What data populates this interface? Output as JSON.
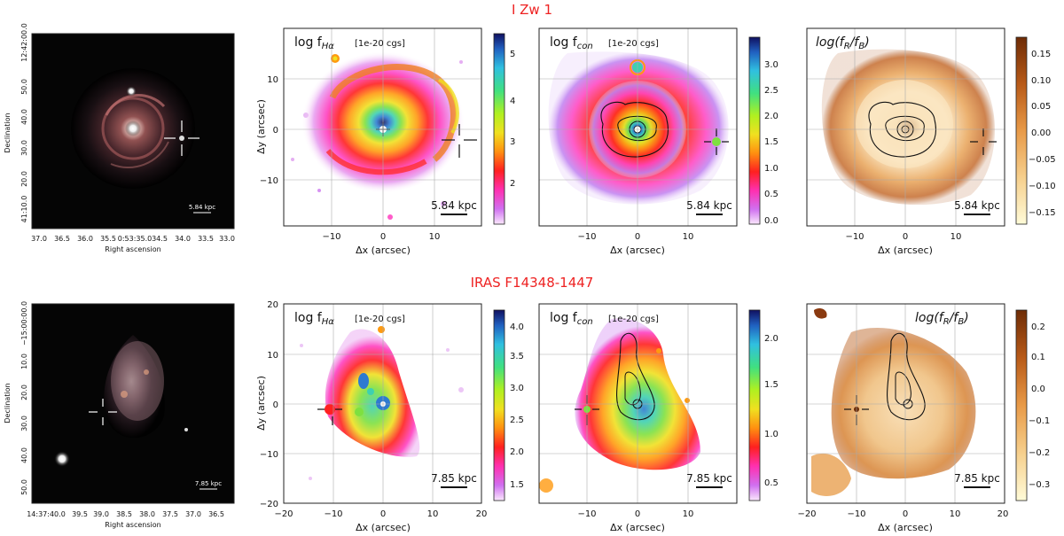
{
  "figure": {
    "rows": [
      {
        "id": "row1",
        "object_name": "I Zw 1",
        "optical": {
          "ylabel": "Declination",
          "xlabel": "Right ascension",
          "dec_ticks": [
            "12:42:00.0",
            "50.0",
            "40.0",
            "30.0",
            "20.0",
            "41:10.0"
          ],
          "ra_ticks": [
            "37.0",
            "36.5",
            "36.0",
            "35.5",
            "0:53:35.0",
            "34.5",
            "34.0",
            "33.5",
            "33.0"
          ],
          "scalebar": "5.84 kpc"
        },
        "panels": [
          {
            "name": "halpha",
            "label_main": "log f",
            "label_sub": "Hα",
            "units": "[1e-20 cgs]",
            "scalebar": "5.84 kpc",
            "xticks": [
              "−10",
              "0",
              "10"
            ],
            "yticks": [
              "10",
              "0",
              "−10"
            ],
            "xlabel": "Δx (arcsec)",
            "ylabel": "Δy (arcsec)",
            "colorbar_ticks": [
              "5",
              "4",
              "3",
              "2"
            ]
          },
          {
            "name": "continuum",
            "label_main": "log f",
            "label_sub": "con",
            "units": "[1e-20 cgs]",
            "scalebar": "5.84 kpc",
            "xticks": [
              "−10",
              "0",
              "10"
            ],
            "xlabel": "Δx (arcsec)",
            "colorbar_ticks": [
              "3.0",
              "2.5",
              "2.0",
              "1.5",
              "1.0",
              "0.5",
              "0.0"
            ]
          },
          {
            "name": "color",
            "label_text": "log(f",
            "label_r": "R",
            "label_mid": "/f",
            "label_b": "B",
            "label_end": ")",
            "scalebar": "5.84 kpc",
            "xticks": [
              "−10",
              "0",
              "10"
            ],
            "xlabel": "Δx (arcsec)",
            "colorbar_ticks": [
              "0.15",
              "0.10",
              "0.05",
              "0.00",
              "−0.05",
              "−0.10",
              "−0.15"
            ]
          }
        ]
      },
      {
        "id": "row2",
        "object_name": "IRAS F14348-1447",
        "optical": {
          "ylabel": "Declination",
          "xlabel": "Right ascension",
          "dec_ticks": [
            "−15:00:00.0",
            "10.0",
            "20.0",
            "30.0",
            "40.0",
            "50.0"
          ],
          "ra_ticks": [
            "14:37:40.0",
            "39.5",
            "39.0",
            "38.5",
            "38.0",
            "37.5",
            "37.0",
            "36.5"
          ],
          "scalebar": "7.85 kpc"
        },
        "panels": [
          {
            "name": "halpha",
            "label_main": "log f",
            "label_sub": "Hα",
            "units": "[1e-20 cgs]",
            "scalebar": "7.85 kpc",
            "xticks": [
              "−20",
              "−10",
              "0",
              "10",
              "20"
            ],
            "yticks": [
              "20",
              "10",
              "0",
              "−10",
              "−20"
            ],
            "xlabel": "Δx (arcsec)",
            "ylabel": "Δy (arcsec)",
            "colorbar_ticks": [
              "4.0",
              "3.5",
              "3.0",
              "2.5",
              "2.0",
              "1.5"
            ]
          },
          {
            "name": "continuum",
            "label_main": "log f",
            "label_sub": "con",
            "units": "[1e-20 cgs]",
            "scalebar": "7.85 kpc",
            "xticks": [
              "−10",
              "0",
              "10"
            ],
            "xlabel": "Δx (arcsec)",
            "colorbar_ticks": [
              "2.0",
              "1.5",
              "1.0",
              "0.5"
            ]
          },
          {
            "name": "color",
            "label_text": "log(f",
            "label_r": "R",
            "label_mid": "/f",
            "label_b": "B",
            "label_end": ")",
            "scalebar": "7.85 kpc",
            "xticks": [
              "−20",
              "−10",
              "0",
              "10",
              "20"
            ],
            "xlabel": "Δx (arcsec)",
            "colorbar_ticks": [
              "0.2",
              "0.1",
              "0.0",
              "−0.1",
              "−0.2",
              "−0.3"
            ]
          }
        ]
      }
    ]
  }
}
